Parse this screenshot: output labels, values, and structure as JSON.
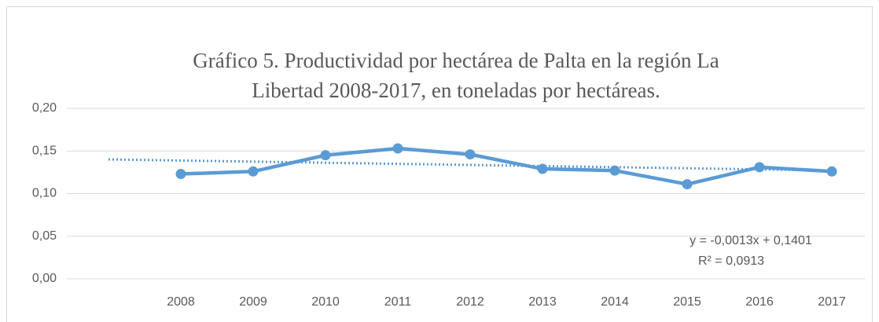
{
  "chart_data": {
    "type": "line",
    "title": [
      "Gráfico 5. Productividad  por hectárea de Palta en la región La",
      "Libertad 2008-2017, en toneladas por hectáreas."
    ],
    "categories": [
      "2008",
      "2009",
      "2010",
      "2011",
      "2012",
      "2013",
      "2014",
      "2015",
      "2016",
      "2017"
    ],
    "series": [
      {
        "color": "#5b9bd5",
        "values": [
          0.123,
          0.126,
          0.145,
          0.153,
          0.146,
          0.129,
          0.127,
          0.111,
          0.131,
          0.126
        ]
      }
    ],
    "trendline": {
      "color": "#5b9bd5",
      "x": [
        0,
        10
      ],
      "values": [
        0.1401,
        0.1271
      ],
      "equation": "y = -0,0013x + 0,1401",
      "r_squared": "R² = 0,0913"
    },
    "ylim": [
      0,
      0.2
    ],
    "yticks": [
      {
        "value": 0,
        "label": "0,00"
      },
      {
        "value": 0.05,
        "label": "0,05"
      },
      {
        "value": 0.1,
        "label": "0,10"
      },
      {
        "value": 0.15,
        "label": "0,15"
      },
      {
        "value": 0.2,
        "label": "0,20"
      }
    ],
    "grid": true
  }
}
